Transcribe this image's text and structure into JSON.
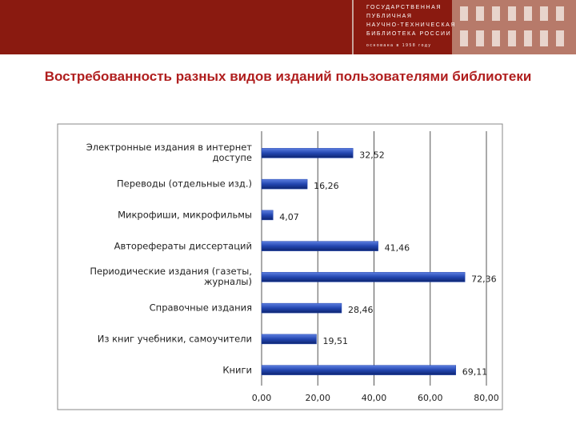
{
  "header": {
    "logo_lines": [
      "ГОСУДАРСТВЕННАЯ",
      "ПУБЛИЧНАЯ",
      "НАУЧНО-ТЕХНИЧЕСКАЯ",
      "БИБЛИОТЕКА РОССИИ"
    ],
    "founded": "основана в 1958 году"
  },
  "chart_data": {
    "type": "bar",
    "orientation": "horizontal",
    "title": "Востребованность разных видов изданий пользователями библиотеки",
    "categories": [
      "Электронные издания в интернет доступе",
      "Переводы (отдельные изд.)",
      "Микрофиши, микрофильмы",
      "Авторефераты диссертаций",
      "Периодические издания (газеты, журналы)",
      "Справочные издания",
      "Из книг учебники, самоучители",
      "Книги"
    ],
    "values": [
      32.52,
      16.26,
      4.07,
      41.46,
      72.36,
      28.46,
      19.51,
      69.11
    ],
    "value_labels": [
      "32,52",
      "16,26",
      "4,07",
      "41,46",
      "72,36",
      "28,46",
      "19,51",
      "69,11"
    ],
    "color": "#2346b0",
    "xlim": [
      0,
      80
    ],
    "xticks": [
      {
        "value": 0,
        "label": "0,00"
      },
      {
        "value": 20,
        "label": "20,00"
      },
      {
        "value": 40,
        "label": "40,00"
      },
      {
        "value": 60,
        "label": "60,00"
      },
      {
        "value": 80,
        "label": "80,00"
      }
    ],
    "grid": true
  }
}
